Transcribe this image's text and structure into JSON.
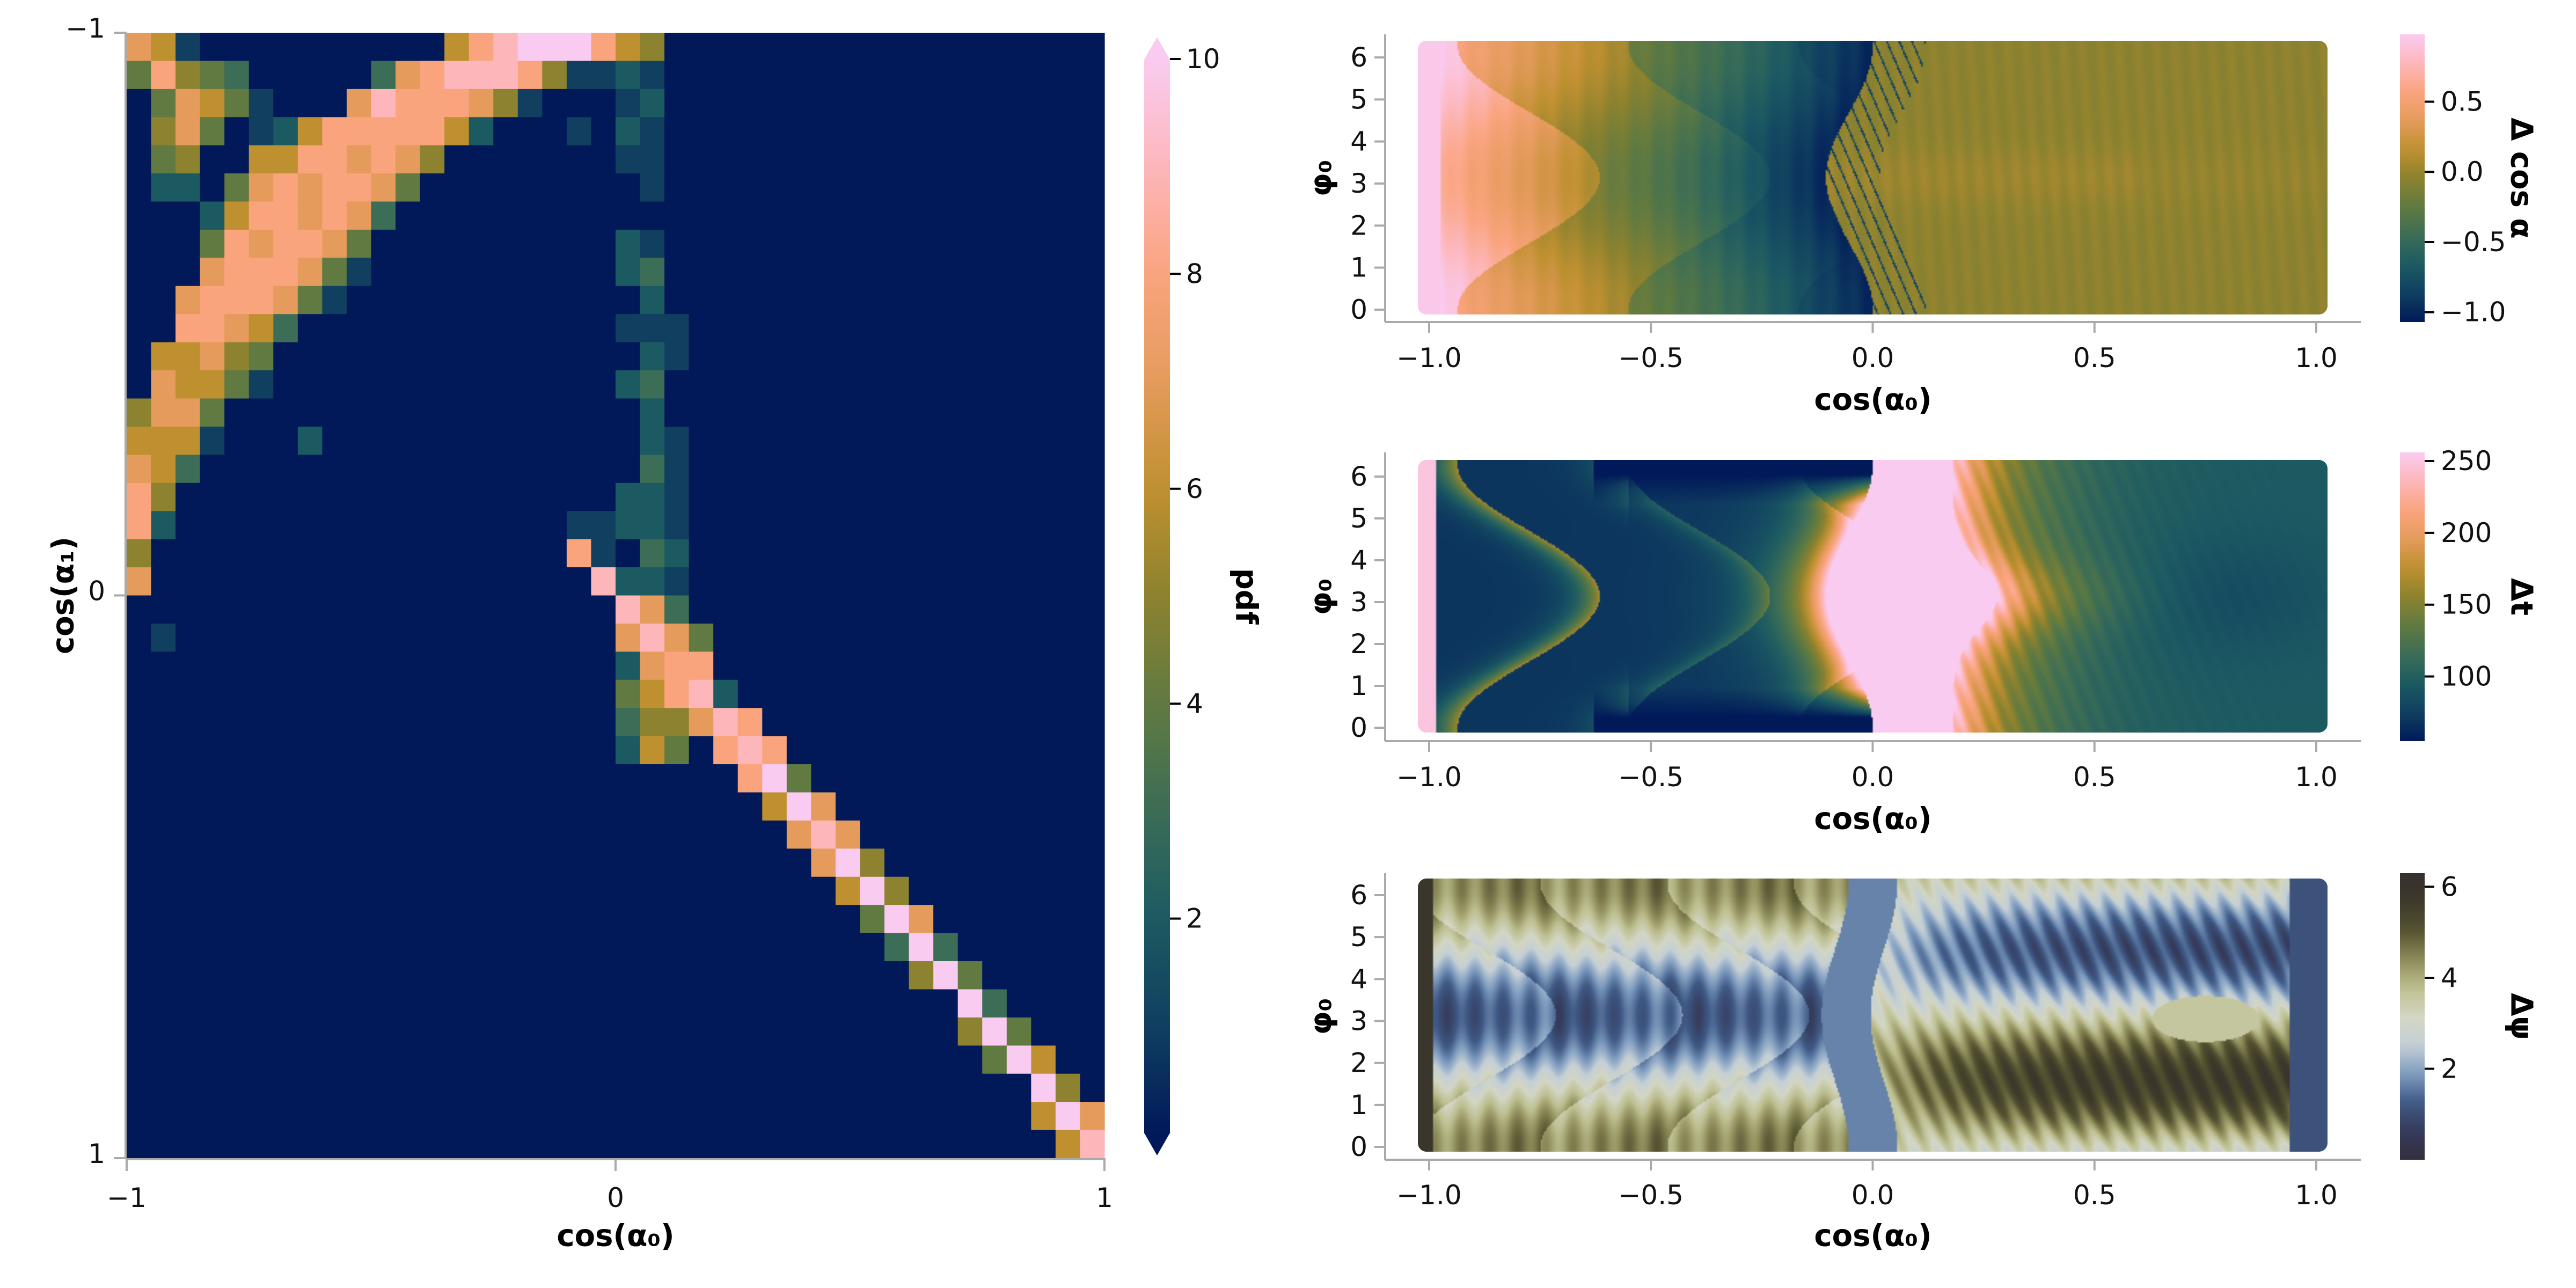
{
  "chart_data": [
    {
      "type": "heatmap",
      "title": "",
      "xlabel": "cos(α₀)",
      "ylabel": "cos(α₁)",
      "xlim": [
        -1,
        1
      ],
      "ylim": [
        -1,
        1
      ],
      "y_inverted": true,
      "grid": false,
      "xticks": [
        {
          "v": -1,
          "label": "−1"
        },
        {
          "v": 0,
          "label": "0"
        },
        {
          "v": 1,
          "label": "1"
        }
      ],
      "yticks": [
        {
          "v": -1,
          "label": "−1"
        },
        {
          "v": 0,
          "label": "0"
        },
        {
          "v": 1,
          "label": "1"
        }
      ],
      "nx": 40,
      "ny": 40,
      "cells_format": "row index = cos(α₁) bin from −1 (top) to 1 (bottom); each entry 'column:pdf', unlisted cells ≈ 0",
      "rows": [
        "0:7 1:6 2:1 13:6 14:8 15:9 16:10 17:10 18:10 19:8 20:6 21:5",
        "0:4 1:8 2:5 3:4 4:3 10:3 11:7 12:8 13:9 14:9 15:9 16:8 17:5 18:1 19:1 20:2 21:1",
        "1:4 2:7 3:6 4:4 5:1 9:7 10:9 11:8 12:8 13:8 14:7 15:5 16:1 20:1 21:2",
        "1:5 2:7 3:4 5:1 6:2 7:6 8:8 9:8 10:8 11:8 12:8 13:6 14:2 18:1 20:2 21:1",
        "1:4 2:5 5:6 6:6 7:8 8:8 9:7 10:8 11:7 12:5 20:1 21:1",
        "1:2 2:2 4:4 5:7 6:8 7:7 8:8 9:8 10:7 11:4 21:1",
        "3:2 4:6 5:8 6:8 7:7 8:8 9:7 10:3",
        "3:4 4:8 5:7 6:8 7:8 8:7 9:4 20:2 21:1",
        "3:7 4:8 5:8 6:8 7:7 8:4 9:1 20:2 21:3",
        "2:7 3:8 4:8 5:8 6:7 7:4 8:1 21:2",
        "2:8 3:8 4:7 5:6 6:3 20:1 21:1 22:1",
        "1:6 2:6 3:7 4:5 5:4 21:2 22:1",
        "1:7 2:6 3:6 4:4 5:1 20:2 21:3",
        "0:5 1:7 2:7 3:4 21:2",
        "0:6 1:6 2:6 3:1 7:2 21:2 22:1",
        "0:7 1:6 2:3 21:3 22:1",
        "0:8 1:5 20:2 21:2 22:1",
        "0:8 1:2 18:1 19:1 20:2 21:2 22:1",
        "0:5 18:8 19:1 21:3 22:2",
        "0:7 19:9 20:2 21:2 22:1",
        "20:9 21:7 22:3",
        "1:1 20:7 21:9 22:7 23:4",
        "20:2 21:7 22:8 23:8",
        "20:4 21:6 22:8 23:9 24:2",
        "20:3 21:5 22:5 23:7 24:9 25:8",
        "20:2 21:6 22:4 24:8 25:9 26:8",
        "25:8 26:10 27:4",
        "26:6 27:10 28:7",
        "27:7 28:9 29:7",
        "28:7 29:10 30:5",
        "29:6 30:10 31:5",
        "30:4 31:10 32:7",
        "31:3 32:10 33:3",
        "32:5 33:10 34:4",
        "34:10 35:3",
        "34:5 35:10 36:4",
        "35:4 36:10 37:6",
        "37:10 38:5",
        "37:6 38:10 39:7",
        "38:6 39:9"
      ],
      "colorbar": {
        "label": "pdf",
        "range": [
          0,
          10
        ],
        "extend": "both",
        "colormap": "batlow",
        "ticks": [
          {
            "v": 2,
            "label": "2"
          },
          {
            "v": 4,
            "label": "4"
          },
          {
            "v": 6,
            "label": "6"
          },
          {
            "v": 8,
            "label": "8"
          },
          {
            "v": 10,
            "label": "10"
          }
        ]
      }
    },
    {
      "type": "heatmap",
      "xlabel": "cos(α₀)",
      "ylabel": "φ₀",
      "xlim": [
        -1.1,
        1.1
      ],
      "ylim": [
        -0.25,
        6.6
      ],
      "xticks": [
        {
          "v": -1,
          "label": "−1.0"
        },
        {
          "v": -0.5,
          "label": "−0.5"
        },
        {
          "v": 0,
          "label": "0.0"
        },
        {
          "v": 0.5,
          "label": "0.5"
        },
        {
          "v": 1,
          "label": "1.0"
        }
      ],
      "yticks": [
        {
          "v": 0,
          "label": "0"
        },
        {
          "v": 1,
          "label": "1"
        },
        {
          "v": 2,
          "label": "2"
        },
        {
          "v": 3,
          "label": "3"
        },
        {
          "v": 4,
          "label": "4"
        },
        {
          "v": 5,
          "label": "5"
        },
        {
          "v": 6,
          "label": "6"
        }
      ],
      "colorbar": {
        "label": "Δ cos α",
        "range": [
          -1.07,
          0.98
        ],
        "colormap": "batlow",
        "ticks": [
          {
            "v": -1,
            "label": "−1.0"
          },
          {
            "v": -0.5,
            "label": "−0.5"
          },
          {
            "v": 0,
            "label": "0.0"
          },
          {
            "v": 0.5,
            "label": "0.5"
          }
        ]
      }
    },
    {
      "type": "heatmap",
      "xlabel": "cos(α₀)",
      "ylabel": "φ₀",
      "xlim": [
        -1.1,
        1.1
      ],
      "ylim": [
        -0.25,
        6.6
      ],
      "xticks": [
        {
          "v": -1,
          "label": "−1.0"
        },
        {
          "v": -0.5,
          "label": "−0.5"
        },
        {
          "v": 0,
          "label": "0.0"
        },
        {
          "v": 0.5,
          "label": "0.5"
        },
        {
          "v": 1,
          "label": "1.0"
        }
      ],
      "yticks": [
        {
          "v": 0,
          "label": "0"
        },
        {
          "v": 1,
          "label": "1"
        },
        {
          "v": 2,
          "label": "2"
        },
        {
          "v": 3,
          "label": "3"
        },
        {
          "v": 4,
          "label": "4"
        },
        {
          "v": 5,
          "label": "5"
        },
        {
          "v": 6,
          "label": "6"
        }
      ],
      "colorbar": {
        "label": "Δt",
        "range": [
          55,
          256
        ],
        "colormap": "batlow",
        "ticks": [
          {
            "v": 100,
            "label": "100"
          },
          {
            "v": 150,
            "label": "150"
          },
          {
            "v": 200,
            "label": "200"
          },
          {
            "v": 250,
            "label": "250"
          }
        ]
      }
    },
    {
      "type": "heatmap",
      "xlabel": "cos(α₀)",
      "ylabel": "φ₀",
      "xlim": [
        -1.1,
        1.1
      ],
      "ylim": [
        -0.25,
        6.6
      ],
      "xticks": [
        {
          "v": -1,
          "label": "−1.0"
        },
        {
          "v": -0.5,
          "label": "−0.5"
        },
        {
          "v": 0,
          "label": "0.0"
        },
        {
          "v": 0.5,
          "label": "0.5"
        },
        {
          "v": 1,
          "label": "1.0"
        }
      ],
      "yticks": [
        {
          "v": 0,
          "label": "0"
        },
        {
          "v": 1,
          "label": "1"
        },
        {
          "v": 2,
          "label": "2"
        },
        {
          "v": 3,
          "label": "3"
        },
        {
          "v": 4,
          "label": "4"
        },
        {
          "v": 5,
          "label": "5"
        },
        {
          "v": 6,
          "label": "6"
        }
      ],
      "colorbar": {
        "label": "Δψ",
        "range": [
          0,
          6.3
        ],
        "colormap": "cyclic-blue-khaki",
        "ticks": [
          {
            "v": 2,
            "label": "2"
          },
          {
            "v": 4,
            "label": "4"
          },
          {
            "v": 6,
            "label": "6"
          }
        ]
      }
    }
  ],
  "colors": {
    "spine": "#aaaaaa",
    "text": "#111111",
    "batlow": [
      "#011959",
      "#103f60",
      "#1c5a62",
      "#3c6d56",
      "#607a41",
      "#8c822f",
      "#bf9030",
      "#e49b5c",
      "#faa47e",
      "#fdb7bb",
      "#facbf0"
    ],
    "cyclic": [
      "#33303f",
      "#353a5a",
      "#3f5a86",
      "#7f9cbf",
      "#c5d0d6",
      "#d3d6c3",
      "#bdbf90",
      "#8c8a58",
      "#545230",
      "#3d3a2a",
      "#35302f"
    ]
  }
}
